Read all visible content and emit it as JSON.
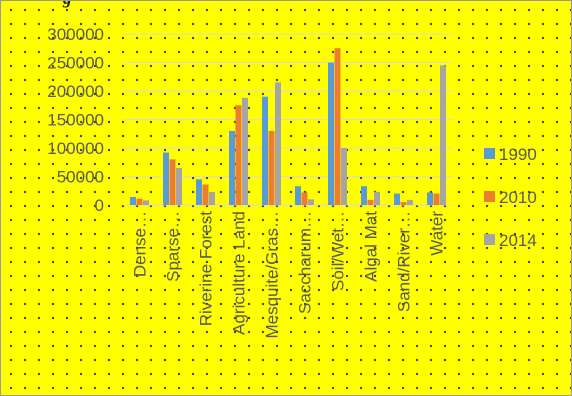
{
  "chart_data": {
    "type": "bar",
    "title": "",
    "xlabel": "",
    "ylabel": "",
    "ylim": [
      0,
      300000
    ],
    "yticks": [
      0,
      50000,
      100000,
      150000,
      200000,
      250000,
      300000
    ],
    "ytick_labels": [
      "0",
      "50000",
      "100000",
      "150000",
      "200000",
      "250000",
      "300000"
    ],
    "categories": [
      "Dense…",
      "Sparse…",
      "Riverine Forest",
      "Agriculture Land",
      "Mesquite/Gras…",
      "Saccharum…",
      "Soil/Wet…",
      "Algal Mat",
      "Sand/River…",
      "Water"
    ],
    "series": [
      {
        "name": "1990",
        "color": "#5b9bd5",
        "values": [
          14000,
          92000,
          45000,
          130000,
          190000,
          33000,
          250000,
          33000,
          20000,
          22000
        ]
      },
      {
        "name": "2010",
        "color": "#ed7d31",
        "values": [
          11000,
          80000,
          36000,
          175000,
          130000,
          22000,
          275000,
          9000,
          5000,
          20000
        ]
      },
      {
        "name": "2014",
        "color": "#a5a5a5",
        "values": [
          8000,
          65000,
          23000,
          188000,
          215000,
          10000,
          100000,
          23000,
          9000,
          245000
        ]
      }
    ],
    "grid": true,
    "legend_position": "right"
  }
}
